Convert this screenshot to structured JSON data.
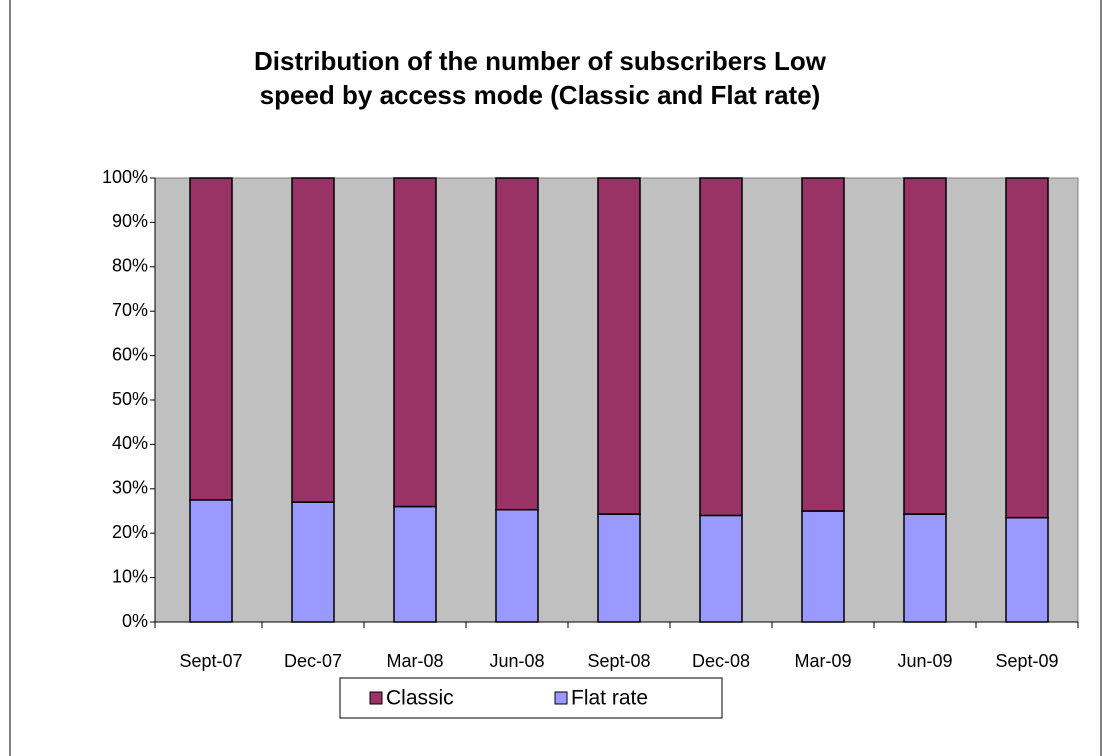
{
  "chart_data": {
    "type": "stacked_bar",
    "title": "Distribution of the number of subscribers Low speed by access mode (Classic and Flat rate)",
    "categories": [
      "Sept-07",
      "Dec-07",
      "Mar-08",
      "Jun-08",
      "Sept-08",
      "Dec-08",
      "Mar-09",
      "Jun-09",
      "Sept-09"
    ],
    "series": [
      {
        "name": "Flat rate",
        "color": "#9999ff",
        "values": [
          27.5,
          27,
          26,
          25.3,
          24.3,
          24,
          25,
          24.3,
          23.5
        ]
      },
      {
        "name": "Classic",
        "color": "#993366",
        "values": [
          72.5,
          73,
          74,
          74.7,
          75.7,
          76,
          75,
          75.7,
          76.5
        ]
      }
    ],
    "ylim": [
      0,
      100
    ],
    "yticks": [
      {
        "value": 0,
        "label": "0%"
      },
      {
        "value": 10,
        "label": "10%"
      },
      {
        "value": 20,
        "label": "20%"
      },
      {
        "value": 30,
        "label": "30%"
      },
      {
        "value": 40,
        "label": "40%"
      },
      {
        "value": 50,
        "label": "50%"
      },
      {
        "value": 60,
        "label": "60%"
      },
      {
        "value": 70,
        "label": "70%"
      },
      {
        "value": 80,
        "label": "80%"
      },
      {
        "value": 90,
        "label": "90%"
      },
      {
        "value": 100,
        "label": "100%"
      }
    ],
    "plot_background": "#c0c0c0",
    "legend": "bottom"
  }
}
